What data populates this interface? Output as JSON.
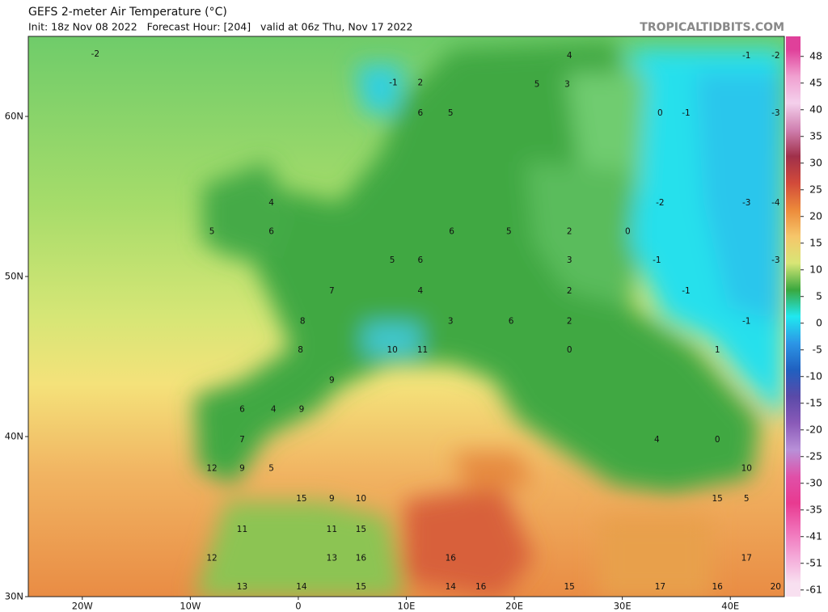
{
  "header": {
    "title": "GEFS 2-meter Air Temperature (°C)",
    "subtitle": "Init: 18z Nov 08 2022   Forecast Hour: [204]   valid at 06z Thu, Nov 17 2022",
    "brand": "TROPICALTIDBITS.COM"
  },
  "map": {
    "xlim": [
      -25,
      45
    ],
    "ylim": [
      30,
      65
    ],
    "xticks": [
      {
        "value": -20,
        "label": "20W"
      },
      {
        "value": -10,
        "label": "10W"
      },
      0,
      {
        "value": 10,
        "label": "10E"
      },
      {
        "value": 20,
        "label": "20E"
      },
      {
        "value": 30,
        "label": "30E"
      },
      {
        "value": 40,
        "label": "40E"
      }
    ],
    "yticks": [
      {
        "value": 30,
        "label": "30N"
      },
      {
        "value": 40,
        "label": "40N"
      },
      {
        "value": 50,
        "label": "50N"
      },
      {
        "value": 60,
        "label": "60N"
      }
    ],
    "labels": [
      {
        "lon": -18.8,
        "lat": 63.9,
        "value": -2
      },
      {
        "lon": 8.8,
        "lat": 62.1,
        "value": -1
      },
      {
        "lon": 11.3,
        "lat": 62.1,
        "value": 2
      },
      {
        "lon": 25.1,
        "lat": 63.8,
        "value": 4
      },
      {
        "lon": 41.5,
        "lat": 63.8,
        "value": -1
      },
      {
        "lon": 44.2,
        "lat": 63.8,
        "value": -2
      },
      {
        "lon": 22.1,
        "lat": 62.0,
        "value": 5
      },
      {
        "lon": 24.9,
        "lat": 62.0,
        "value": 3
      },
      {
        "lon": 33.5,
        "lat": 60.2,
        "value": 0
      },
      {
        "lon": 35.9,
        "lat": 60.2,
        "value": -1
      },
      {
        "lon": 44.2,
        "lat": 60.2,
        "value": -3
      },
      {
        "lon": 11.3,
        "lat": 60.2,
        "value": 6
      },
      {
        "lon": 14.1,
        "lat": 60.2,
        "value": 5
      },
      {
        "lon": -2.5,
        "lat": 54.6,
        "value": 4
      },
      {
        "lon": -8.0,
        "lat": 52.8,
        "value": 5
      },
      {
        "lon": -2.5,
        "lat": 52.8,
        "value": 6
      },
      {
        "lon": 33.5,
        "lat": 54.6,
        "value": -2
      },
      {
        "lon": 41.5,
        "lat": 54.6,
        "value": -3
      },
      {
        "lon": 44.2,
        "lat": 54.6,
        "value": -4
      },
      {
        "lon": 14.2,
        "lat": 52.8,
        "value": 6
      },
      {
        "lon": 19.5,
        "lat": 52.8,
        "value": 5
      },
      {
        "lon": 25.1,
        "lat": 52.8,
        "value": 2
      },
      {
        "lon": 30.5,
        "lat": 52.8,
        "value": 0
      },
      {
        "lon": 8.7,
        "lat": 51.0,
        "value": 5
      },
      {
        "lon": 11.3,
        "lat": 51.0,
        "value": 6
      },
      {
        "lon": 25.1,
        "lat": 51.0,
        "value": 3
      },
      {
        "lon": 33.2,
        "lat": 51.0,
        "value": -1
      },
      {
        "lon": 44.2,
        "lat": 51.0,
        "value": -3
      },
      {
        "lon": 3.1,
        "lat": 49.1,
        "value": 7
      },
      {
        "lon": 11.3,
        "lat": 49.1,
        "value": 4
      },
      {
        "lon": 25.1,
        "lat": 49.1,
        "value": 2
      },
      {
        "lon": 35.9,
        "lat": 49.1,
        "value": -1
      },
      {
        "lon": 0.4,
        "lat": 47.2,
        "value": 8
      },
      {
        "lon": 14.1,
        "lat": 47.2,
        "value": 3
      },
      {
        "lon": 19.7,
        "lat": 47.2,
        "value": 6
      },
      {
        "lon": 25.1,
        "lat": 47.2,
        "value": 2
      },
      {
        "lon": 41.5,
        "lat": 47.2,
        "value": -1
      },
      {
        "lon": 0.2,
        "lat": 45.4,
        "value": 8
      },
      {
        "lon": 8.7,
        "lat": 45.4,
        "value": 10
      },
      {
        "lon": 11.5,
        "lat": 45.4,
        "value": 11
      },
      {
        "lon": 25.1,
        "lat": 45.4,
        "value": 0
      },
      {
        "lon": 38.8,
        "lat": 45.4,
        "value": 1
      },
      {
        "lon": 3.1,
        "lat": 43.5,
        "value": 9
      },
      {
        "lon": -5.2,
        "lat": 41.7,
        "value": 6
      },
      {
        "lon": -2.3,
        "lat": 41.7,
        "value": 4
      },
      {
        "lon": 0.3,
        "lat": 41.7,
        "value": 9
      },
      {
        "lon": -5.2,
        "lat": 39.8,
        "value": 7
      },
      {
        "lon": 33.2,
        "lat": 39.8,
        "value": 4
      },
      {
        "lon": 38.8,
        "lat": 39.8,
        "value": 0
      },
      {
        "lon": -8.0,
        "lat": 38.0,
        "value": 12
      },
      {
        "lon": -5.2,
        "lat": 38.0,
        "value": 9
      },
      {
        "lon": -2.5,
        "lat": 38.0,
        "value": 5
      },
      {
        "lon": 41.5,
        "lat": 38.0,
        "value": 10
      },
      {
        "lon": 0.3,
        "lat": 36.1,
        "value": 15
      },
      {
        "lon": 3.1,
        "lat": 36.1,
        "value": 9
      },
      {
        "lon": 5.8,
        "lat": 36.1,
        "value": 10
      },
      {
        "lon": 38.8,
        "lat": 36.1,
        "value": 15
      },
      {
        "lon": 41.5,
        "lat": 36.1,
        "value": 5
      },
      {
        "lon": -5.2,
        "lat": 34.2,
        "value": 11
      },
      {
        "lon": 3.1,
        "lat": 34.2,
        "value": 11
      },
      {
        "lon": 5.8,
        "lat": 34.2,
        "value": 15
      },
      {
        "lon": -8.0,
        "lat": 32.4,
        "value": 12
      },
      {
        "lon": 3.1,
        "lat": 32.4,
        "value": 13
      },
      {
        "lon": 5.8,
        "lat": 32.4,
        "value": 16
      },
      {
        "lon": 14.1,
        "lat": 32.4,
        "value": 16
      },
      {
        "lon": 41.5,
        "lat": 32.4,
        "value": 17
      },
      {
        "lon": -5.2,
        "lat": 30.6,
        "value": 13
      },
      {
        "lon": 0.3,
        "lat": 30.6,
        "value": 14
      },
      {
        "lon": 5.8,
        "lat": 30.6,
        "value": 15
      },
      {
        "lon": 14.1,
        "lat": 30.6,
        "value": 14
      },
      {
        "lon": 16.9,
        "lat": 30.6,
        "value": 16
      },
      {
        "lon": 25.1,
        "lat": 30.6,
        "value": 15
      },
      {
        "lon": 33.5,
        "lat": 30.6,
        "value": 17
      },
      {
        "lon": 38.8,
        "lat": 30.6,
        "value": 16
      },
      {
        "lon": 44.2,
        "lat": 30.6,
        "value": 20
      }
    ]
  },
  "colorbar": {
    "ticks": [
      48,
      45,
      40,
      35,
      30,
      25,
      20,
      15,
      10,
      5,
      0,
      -5,
      -10,
      -15,
      -20,
      -25,
      -30,
      -35,
      -41,
      -51,
      -61
    ],
    "colors": [
      "#e0409a",
      "#f0a0d0",
      "#f4d0ec",
      "#d080b0",
      "#a0304a",
      "#d24a3a",
      "#ec8a3a",
      "#f6c66a",
      "#d8e676",
      "#3aa83e",
      "#20e8f0",
      "#2c96e6",
      "#2060c0",
      "#5a4aa8",
      "#8a5ab8",
      "#b890d8",
      "#e050a8",
      "#e83a90",
      "#f070b8",
      "#f4a8d8",
      "#f8e0f0"
    ]
  }
}
